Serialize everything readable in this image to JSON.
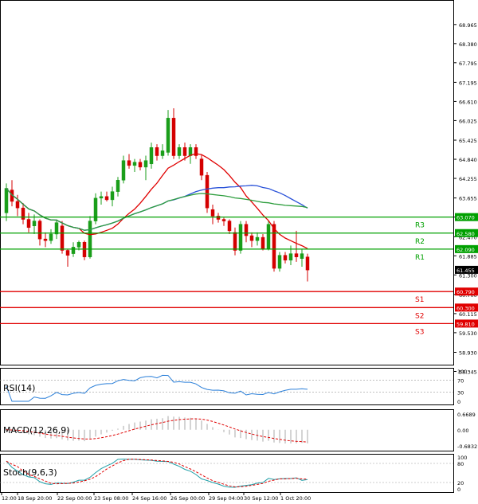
{
  "chart_data": {
    "type": "candlestick",
    "main": {
      "yticks": [
        "68.965",
        "68.380",
        "67.795",
        "67.195",
        "66.610",
        "66.025",
        "65.425",
        "64.840",
        "64.255",
        "63.655",
        "63.070",
        "62.470",
        "61.885",
        "61.300",
        "60.700",
        "60.115",
        "59.530",
        "58.930",
        "58.345"
      ],
      "current_price": "61.455",
      "levels": [
        {
          "label": "R3",
          "value": "63.070",
          "color": "#00a000"
        },
        {
          "label": "R2",
          "value": "62.580",
          "color": "#00a000"
        },
        {
          "label": "R1",
          "value": "62.090",
          "color": "#00a000"
        },
        {
          "label": "S1",
          "value": "60.790",
          "color": "#e00000"
        },
        {
          "label": "S2",
          "value": "60.300",
          "color": "#e00000"
        },
        {
          "label": "S3",
          "value": "59.810",
          "color": "#e00000"
        }
      ],
      "candles": [
        {
          "o": 63.2,
          "h": 64.1,
          "l": 62.95,
          "c": 63.95
        },
        {
          "o": 63.9,
          "h": 64.2,
          "l": 63.4,
          "c": 63.55
        },
        {
          "o": 63.55,
          "h": 63.75,
          "l": 63.1,
          "c": 63.35
        },
        {
          "o": 63.35,
          "h": 63.5,
          "l": 62.85,
          "c": 63.0
        },
        {
          "o": 63.0,
          "h": 63.2,
          "l": 62.6,
          "c": 62.75
        },
        {
          "o": 62.8,
          "h": 63.15,
          "l": 62.55,
          "c": 62.95
        },
        {
          "o": 62.95,
          "h": 63.0,
          "l": 62.2,
          "c": 62.4
        },
        {
          "o": 62.4,
          "h": 62.6,
          "l": 62.15,
          "c": 62.35
        },
        {
          "o": 62.35,
          "h": 62.7,
          "l": 62.25,
          "c": 62.55
        },
        {
          "o": 62.55,
          "h": 63.0,
          "l": 62.4,
          "c": 62.9
        },
        {
          "o": 62.8,
          "h": 62.95,
          "l": 61.95,
          "c": 62.05
        },
        {
          "o": 62.05,
          "h": 62.1,
          "l": 61.55,
          "c": 61.9
        },
        {
          "o": 61.95,
          "h": 62.3,
          "l": 61.85,
          "c": 62.15
        },
        {
          "o": 62.15,
          "h": 62.35,
          "l": 62.05,
          "c": 62.3
        },
        {
          "o": 62.3,
          "h": 62.35,
          "l": 61.75,
          "c": 61.85
        },
        {
          "o": 61.85,
          "h": 63.1,
          "l": 61.8,
          "c": 62.95
        },
        {
          "o": 62.95,
          "h": 63.8,
          "l": 62.85,
          "c": 63.65
        },
        {
          "o": 63.65,
          "h": 63.85,
          "l": 63.45,
          "c": 63.7
        },
        {
          "o": 63.7,
          "h": 63.85,
          "l": 63.55,
          "c": 63.6
        },
        {
          "o": 63.6,
          "h": 64.0,
          "l": 63.4,
          "c": 63.85
        },
        {
          "o": 63.85,
          "h": 64.3,
          "l": 63.7,
          "c": 64.2
        },
        {
          "o": 64.2,
          "h": 64.95,
          "l": 64.1,
          "c": 64.8
        },
        {
          "o": 64.8,
          "h": 65.0,
          "l": 64.55,
          "c": 64.65
        },
        {
          "o": 64.65,
          "h": 64.85,
          "l": 64.45,
          "c": 64.75
        },
        {
          "o": 64.75,
          "h": 64.85,
          "l": 64.5,
          "c": 64.6
        },
        {
          "o": 64.6,
          "h": 64.95,
          "l": 64.2,
          "c": 64.8
        },
        {
          "o": 64.7,
          "h": 65.35,
          "l": 64.55,
          "c": 65.2
        },
        {
          "o": 65.2,
          "h": 65.3,
          "l": 64.8,
          "c": 64.95
        },
        {
          "o": 64.95,
          "h": 65.3,
          "l": 64.85,
          "c": 65.1
        },
        {
          "o": 65.05,
          "h": 66.35,
          "l": 64.95,
          "c": 66.1
        },
        {
          "o": 66.1,
          "h": 66.4,
          "l": 64.85,
          "c": 64.95
        },
        {
          "o": 64.95,
          "h": 65.3,
          "l": 64.85,
          "c": 65.2
        },
        {
          "o": 65.2,
          "h": 65.35,
          "l": 64.8,
          "c": 64.95
        },
        {
          "o": 64.95,
          "h": 65.3,
          "l": 64.7,
          "c": 65.2
        },
        {
          "o": 65.2,
          "h": 65.3,
          "l": 64.85,
          "c": 64.95
        },
        {
          "o": 64.85,
          "h": 65.0,
          "l": 64.2,
          "c": 64.35
        },
        {
          "o": 64.35,
          "h": 64.45,
          "l": 63.2,
          "c": 63.35
        },
        {
          "o": 63.3,
          "h": 63.45,
          "l": 62.85,
          "c": 63.1
        },
        {
          "o": 63.1,
          "h": 63.2,
          "l": 62.9,
          "c": 63.0
        },
        {
          "o": 63.0,
          "h": 63.05,
          "l": 62.8,
          "c": 62.95
        },
        {
          "o": 62.95,
          "h": 63.0,
          "l": 62.55,
          "c": 62.65
        },
        {
          "o": 62.6,
          "h": 62.75,
          "l": 61.9,
          "c": 62.05
        },
        {
          "o": 62.05,
          "h": 62.95,
          "l": 61.95,
          "c": 62.85
        },
        {
          "o": 62.85,
          "h": 62.95,
          "l": 62.3,
          "c": 62.5
        },
        {
          "o": 62.5,
          "h": 62.6,
          "l": 62.15,
          "c": 62.35
        },
        {
          "o": 62.35,
          "h": 62.6,
          "l": 62.2,
          "c": 62.45
        },
        {
          "o": 62.45,
          "h": 62.55,
          "l": 62.05,
          "c": 62.1
        },
        {
          "o": 62.1,
          "h": 62.95,
          "l": 62.05,
          "c": 62.85
        },
        {
          "o": 62.85,
          "h": 62.95,
          "l": 61.4,
          "c": 61.5
        },
        {
          "o": 61.5,
          "h": 62.0,
          "l": 61.4,
          "c": 61.9
        },
        {
          "o": 61.9,
          "h": 62.0,
          "l": 61.65,
          "c": 61.75
        },
        {
          "o": 61.75,
          "h": 62.2,
          "l": 61.6,
          "c": 61.95
        },
        {
          "o": 61.95,
          "h": 62.65,
          "l": 61.7,
          "c": 61.85
        },
        {
          "o": 61.8,
          "h": 62.1,
          "l": 61.55,
          "c": 61.95
        },
        {
          "o": 61.85,
          "h": 61.95,
          "l": 61.1,
          "c": 61.45
        }
      ]
    },
    "rsi": {
      "label": "RSI(14)",
      "yticks": [
        "100",
        "70",
        "30",
        "0"
      ]
    },
    "macd": {
      "label": "MACD(12,26,9)",
      "yticks": [
        "0.6689",
        "0.00",
        "-0.6832"
      ]
    },
    "stoch": {
      "label": "Stoch(9,6,3)",
      "yticks": [
        "100",
        "80",
        "20",
        "0"
      ]
    },
    "xlabels": [
      "12:00",
      "18 Sep 20:00",
      "22 Sep 00:00",
      "23 Sep 08:00",
      "24 Sep 16:00",
      "26 Sep 00:00",
      "29 Sep 04:00",
      "30 Sep 12:00",
      "1 Oct 20:00"
    ]
  }
}
